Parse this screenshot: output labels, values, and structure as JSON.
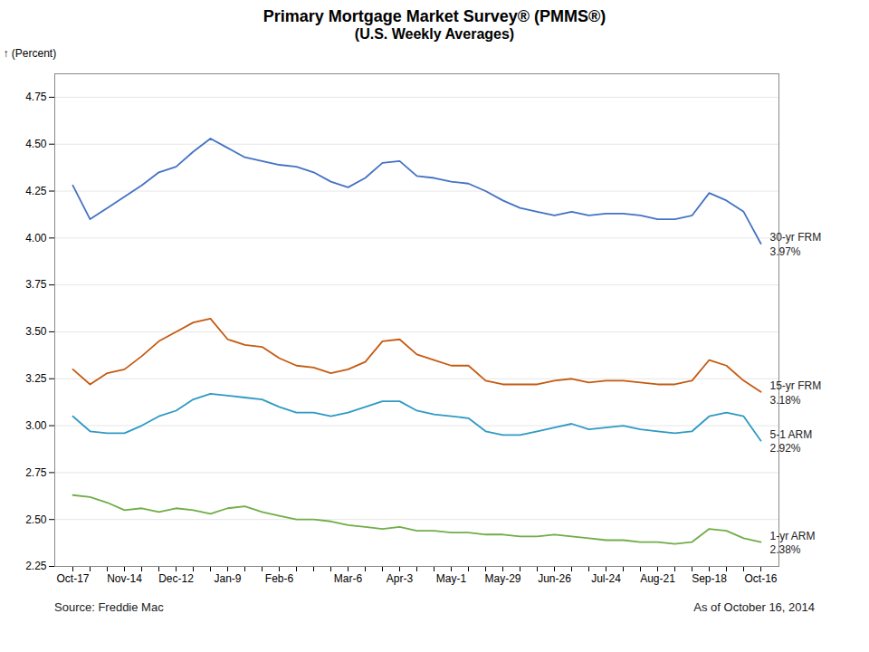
{
  "chart_data": {
    "type": "line",
    "title": "Primary Mortgage Market Survey® (PMMS®)",
    "subtitle": "(U.S. Weekly Averages)",
    "y_label": "(Percent)",
    "caption": "Source: Freddie Mac",
    "note": "As of October 16, 2014",
    "categories": [
      "Oct-17",
      null,
      null,
      "Nov-14",
      null,
      null,
      "Dec-12",
      null,
      null,
      "Jan-9",
      null,
      null,
      "Feb-6",
      null,
      null,
      null,
      "Mar-6",
      null,
      null,
      "Apr-3",
      null,
      null,
      "May-1",
      null,
      null,
      "May-29",
      null,
      null,
      "Jun-26",
      null,
      null,
      "Jul-24",
      null,
      null,
      "Aug-21",
      null,
      null,
      "Sep-18",
      null,
      null,
      "Oct-16"
    ],
    "series": [
      {
        "name": "30-yr FRM",
        "color": "#4472C4",
        "values": [
          4.28,
          4.1,
          4.16,
          4.22,
          4.28,
          4.35,
          4.38,
          4.46,
          4.53,
          4.48,
          4.43,
          4.41,
          4.39,
          4.38,
          4.35,
          4.3,
          4.27,
          4.32,
          4.4,
          4.41,
          4.33,
          4.32,
          4.3,
          4.29,
          4.25,
          4.2,
          4.16,
          4.14,
          4.12,
          4.14,
          4.12,
          4.13,
          4.13,
          4.12,
          4.1,
          4.1,
          4.12,
          4.24,
          4.2,
          4.14,
          3.97
        ]
      },
      {
        "name": "15-yr FRM",
        "color": "#C55A11",
        "values": [
          3.3,
          3.22,
          3.28,
          3.3,
          3.37,
          3.45,
          3.5,
          3.55,
          3.57,
          3.46,
          3.43,
          3.42,
          3.36,
          3.32,
          3.31,
          3.28,
          3.3,
          3.34,
          3.45,
          3.46,
          3.38,
          3.35,
          3.32,
          3.32,
          3.24,
          3.22,
          3.22,
          3.22,
          3.24,
          3.25,
          3.23,
          3.24,
          3.24,
          3.23,
          3.22,
          3.22,
          3.24,
          3.35,
          3.32,
          3.24,
          3.18
        ]
      },
      {
        "name": "5-1 ARM",
        "color": "#2E9AC4",
        "values": [
          3.05,
          2.97,
          2.96,
          2.96,
          3.0,
          3.05,
          3.08,
          3.14,
          3.17,
          3.16,
          3.15,
          3.14,
          3.1,
          3.07,
          3.07,
          3.05,
          3.07,
          3.1,
          3.13,
          3.13,
          3.08,
          3.06,
          3.05,
          3.04,
          2.97,
          2.95,
          2.95,
          2.97,
          2.99,
          3.01,
          2.98,
          2.99,
          3.0,
          2.98,
          2.97,
          2.96,
          2.97,
          3.05,
          3.07,
          3.05,
          2.92
        ]
      },
      {
        "name": "1-yr ARM",
        "color": "#70AD47",
        "values": [
          2.63,
          2.62,
          2.59,
          2.55,
          2.56,
          2.54,
          2.56,
          2.55,
          2.53,
          2.56,
          2.57,
          2.54,
          2.52,
          2.5,
          2.5,
          2.49,
          2.47,
          2.46,
          2.45,
          2.46,
          2.44,
          2.44,
          2.43,
          2.43,
          2.42,
          2.42,
          2.41,
          2.41,
          2.42,
          2.41,
          2.4,
          2.39,
          2.39,
          2.38,
          2.38,
          2.37,
          2.38,
          2.45,
          2.44,
          2.4,
          2.38
        ]
      }
    ],
    "ylim": [
      2.25,
      4.875
    ],
    "yticks": [
      2.25,
      {
        "value": 2.5,
        "label": "2.50"
      },
      2.75,
      {
        "value": 3.0,
        "label": "3.00"
      },
      3.25,
      {
        "value": 3.5,
        "label": "3.50"
      },
      3.75,
      {
        "value": 4.0,
        "label": "4.00"
      },
      4.25,
      {
        "value": 4.5,
        "label": "4.50"
      },
      4.75
    ],
    "grid": true,
    "annotations": [
      {
        "text": "30-yr FRM\n3.97%",
        "x": "Oct-16",
        "y": 3.97
      },
      {
        "text": "15-yr FRM\n3.18%",
        "x": "Oct-16",
        "y": 3.18
      },
      {
        "text": "5-1 ARM\n2.92%",
        "x": "Oct-16",
        "y": 2.92
      },
      {
        "text": "1-yr ARM\n2.38%",
        "x": "Oct-16",
        "y": 2.38
      }
    ]
  }
}
